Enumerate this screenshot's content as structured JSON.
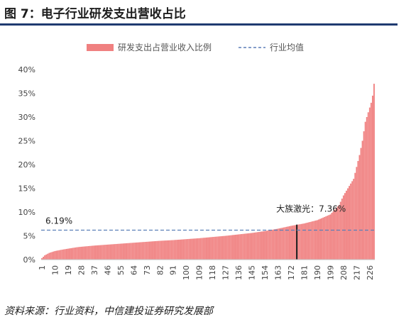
{
  "title": "图 7：电子行业研发支出营收占比",
  "source": "资料来源：行业资料，中信建投证券研究发展部",
  "chart_data": {
    "type": "bar",
    "n_bars": 229,
    "x_tick_labels": [
      "1",
      "10",
      "19",
      "28",
      "37",
      "46",
      "55",
      "64",
      "73",
      "82",
      "91",
      "100",
      "109",
      "118",
      "127",
      "136",
      "145",
      "154",
      "163",
      "172",
      "181",
      "190",
      "199",
      "208",
      "217",
      "226"
    ],
    "x_tick_values": [
      1,
      10,
      19,
      28,
      37,
      46,
      55,
      64,
      73,
      82,
      91,
      100,
      109,
      118,
      127,
      136,
      145,
      154,
      163,
      172,
      181,
      190,
      199,
      208,
      217,
      226
    ],
    "y_tick_labels": [
      "0%",
      "5%",
      "10%",
      "15%",
      "20%",
      "25%",
      "30%",
      "35%",
      "40%"
    ],
    "ylim": [
      0,
      40
    ],
    "y_unit": "%",
    "legend": {
      "placement": "top",
      "bar_series_label": "研发支出占营业收入比例",
      "line_series_label": "行业均值"
    },
    "series": [
      {
        "name": "研发支出占营业收入比例",
        "kind": "bar",
        "color": "#f08080",
        "curve_points": [
          [
            1,
            0.3
          ],
          [
            3,
            0.9
          ],
          [
            6,
            1.4
          ],
          [
            10,
            1.8
          ],
          [
            15,
            2.1
          ],
          [
            19,
            2.3
          ],
          [
            25,
            2.6
          ],
          [
            28,
            2.7
          ],
          [
            37,
            2.95
          ],
          [
            46,
            3.15
          ],
          [
            55,
            3.35
          ],
          [
            64,
            3.55
          ],
          [
            73,
            3.75
          ],
          [
            82,
            3.95
          ],
          [
            91,
            4.1
          ],
          [
            100,
            4.3
          ],
          [
            109,
            4.5
          ],
          [
            118,
            4.75
          ],
          [
            127,
            5.0
          ],
          [
            136,
            5.3
          ],
          [
            145,
            5.6
          ],
          [
            154,
            6.0
          ],
          [
            163,
            6.5
          ],
          [
            172,
            7.1
          ],
          [
            181,
            7.6
          ],
          [
            190,
            8.3
          ],
          [
            199,
            9.5
          ],
          [
            205,
            11.5
          ],
          [
            208,
            13.5
          ],
          [
            212,
            15.5
          ],
          [
            215,
            17.0
          ],
          [
            217,
            19.5
          ],
          [
            219,
            22.0
          ],
          [
            221,
            25.0
          ],
          [
            223,
            29.0
          ],
          [
            225,
            31.0
          ],
          [
            227,
            33.0
          ],
          [
            228,
            34.5
          ],
          [
            229,
            37.0
          ]
        ]
      },
      {
        "name": "行业均值",
        "kind": "line",
        "style": "dashed",
        "color": "#5b7fb8",
        "value": 6.19
      }
    ],
    "highlight": {
      "index": 176,
      "value": 7.36,
      "color": "#000000",
      "label": "大族激光：7.36%"
    },
    "annotations": [
      {
        "text": "6.19%"
      }
    ]
  }
}
